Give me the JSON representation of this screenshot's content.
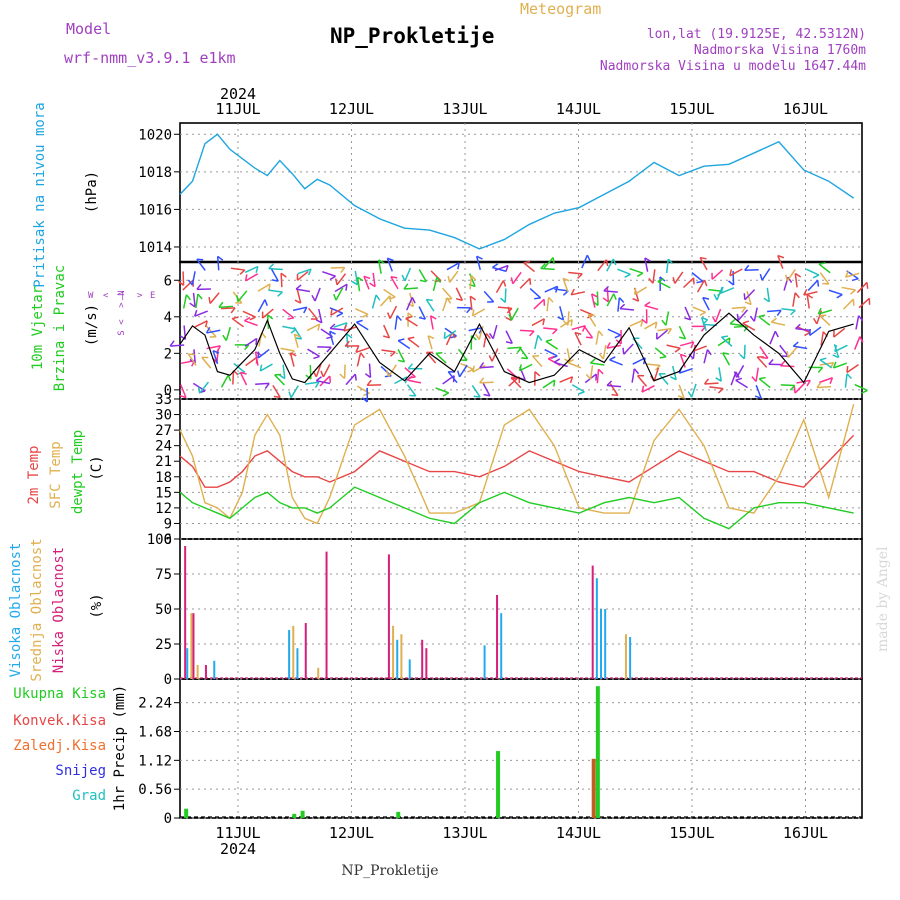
{
  "header": {
    "model_label": "Model",
    "model_name": "wrf-nmm_v3.9.1 e1km",
    "product": "Meteogram",
    "station": "NP_Prokletije",
    "lonlat": "lon,lat (19.9125E, 42.5312N)",
    "elevation": "Nadmorska Visina 1760m",
    "model_elevation": "Nadmorska Visina u modelu 1647.44m",
    "footer_station": "NP_Prokletije",
    "credit": "made by Angel"
  },
  "time_axis": {
    "year": "2024",
    "days": [
      "11JUL",
      "12JUL",
      "13JUL",
      "14JUL",
      "15JUL",
      "16JUL"
    ]
  },
  "colors": {
    "pressure": "#1fa5e0",
    "temp2m": "#e84545",
    "sfc": "#e0b050",
    "dewpt": "#22cc22",
    "high_cloud": "#22aaee",
    "mid_cloud": "#e0b050",
    "low_cloud": "#d4207a",
    "title_purple": "#a040c0",
    "product_orange": "#e0b050",
    "wind_black": "#000000"
  },
  "panels": {
    "pressure": {
      "label": "Pritisak na nivou mora",
      "unit": "(hPa)",
      "ticks": [
        "1014",
        "1016",
        "1018",
        "1020"
      ]
    },
    "wind": {
      "label1": "10m Vjetar",
      "label2": "Brzina i Pravac",
      "unit": "(m/s)",
      "ticks": [
        "0",
        "2",
        "4",
        "6"
      ],
      "compass_n": "N",
      "compass_s": "S",
      "compass_w": "W",
      "compass_e": "E"
    },
    "temp": {
      "label1": "2m Temp",
      "label2": "SFC Temp",
      "label3": "dewpt Temp",
      "unit": "(C)",
      "ticks": [
        "6",
        "9",
        "12",
        "15",
        "18",
        "21",
        "24",
        "27",
        "30",
        "33"
      ]
    },
    "cloud": {
      "label1": "Visoka Oblacnost",
      "label2": "Srednja Oblacnost",
      "label3": "Niska Oblacnost",
      "unit": "(%)",
      "ticks": [
        "0",
        "25",
        "50",
        "75",
        "100"
      ]
    },
    "precip": {
      "legend": [
        "Ukupna Kisa",
        "Konvek.Kisa",
        "Zaledj.Kisa",
        "Snijeg",
        "Grad"
      ],
      "legend_colors": [
        "#22cc22",
        "#e84545",
        "#f07030",
        "#3030e0",
        "#20c0c0"
      ],
      "unit": "1hr Precip (mm)",
      "ticks": [
        "0",
        "0.56",
        "1.12",
        "1.68",
        "2.24"
      ]
    }
  },
  "chart_data": [
    {
      "type": "line",
      "name_key": "pressure",
      "x_hours": [
        0,
        3,
        6,
        9,
        12,
        15,
        18,
        21,
        24,
        27,
        30,
        33,
        36,
        42,
        48,
        54,
        60,
        66,
        72,
        78,
        84,
        90,
        96,
        102,
        108,
        114,
        120,
        126,
        132,
        138,
        144,
        150,
        156,
        162
      ],
      "y": [
        1016.8,
        1017.5,
        1019.5,
        1020.0,
        1019.2,
        1018.7,
        1018.2,
        1017.8,
        1018.6,
        1017.9,
        1017.1,
        1017.6,
        1017.3,
        1016.2,
        1015.5,
        1015.0,
        1014.9,
        1014.5,
        1013.9,
        1014.4,
        1015.2,
        1015.8,
        1016.1,
        1016.8,
        1017.5,
        1018.5,
        1017.8,
        1018.3,
        1018.4,
        1019.0,
        1019.6,
        1018.1,
        1017.5,
        1016.6
      ],
      "ylim": [
        1013.2,
        1020.6
      ],
      "ylabel": "Pritisak na nivou mora (hPa)"
    },
    {
      "type": "line",
      "name_key": "wind",
      "x_hours": [
        0,
        3,
        6,
        9,
        12,
        15,
        18,
        21,
        24,
        27,
        30,
        33,
        36,
        42,
        48,
        54,
        60,
        66,
        72,
        78,
        84,
        90,
        96,
        102,
        108,
        114,
        120,
        126,
        132,
        138,
        144,
        150,
        156,
        162
      ],
      "y": [
        2.5,
        3.5,
        3.0,
        1.0,
        0.8,
        1.5,
        2.2,
        3.8,
        2.0,
        0.6,
        0.4,
        1.2,
        2.0,
        3.6,
        1.5,
        0.5,
        2.0,
        1.0,
        3.6,
        1.0,
        0.4,
        0.8,
        2.2,
        1.5,
        3.4,
        0.5,
        1.0,
        3.0,
        4.2,
        3.0,
        2.0,
        0.4,
        3.2,
        3.6
      ],
      "ylim": [
        -0.5,
        7.0
      ],
      "ylabel": "10m Vjetar Brzina i Pravac (m/s)"
    },
    {
      "type": "line",
      "name_key": "temperature",
      "x_hours": [
        0,
        3,
        6,
        9,
        12,
        15,
        18,
        21,
        24,
        27,
        30,
        33,
        36,
        42,
        48,
        54,
        60,
        66,
        72,
        78,
        84,
        90,
        96,
        102,
        108,
        114,
        120,
        126,
        132,
        138,
        144,
        150,
        156,
        162
      ],
      "series": [
        {
          "name": "2m Temp",
          "values": [
            22,
            20,
            16,
            16,
            17,
            19,
            22,
            23,
            21,
            19,
            18,
            18,
            17,
            19,
            23,
            21,
            19,
            19,
            18,
            20,
            23,
            21,
            19,
            18,
            17,
            20,
            23,
            21,
            19,
            19,
            17,
            16,
            21,
            26
          ]
        },
        {
          "name": "SFC Temp",
          "values": [
            27,
            22,
            13,
            12,
            10,
            15,
            26,
            30,
            26,
            14,
            10,
            9,
            14,
            28,
            31,
            22,
            11,
            11,
            13,
            28,
            31,
            24,
            12,
            11,
            11,
            25,
            31,
            24,
            12,
            11,
            18,
            29,
            14,
            32
          ]
        },
        {
          "name": "dewpt Temp",
          "values": [
            15,
            13,
            12,
            11,
            10,
            12,
            14,
            15,
            13,
            12,
            12,
            11,
            12,
            16,
            14,
            12,
            10,
            9,
            13,
            15,
            13,
            12,
            11,
            13,
            14,
            13,
            14,
            10,
            8,
            12,
            13,
            13,
            12,
            11
          ]
        }
      ],
      "ylim": [
        6,
        33
      ],
      "ylabel": "Temp (C)"
    },
    {
      "type": "bar",
      "name_key": "clouds",
      "bars": [
        {
          "x": 1,
          "series": "Niska Oblacnost",
          "value": 95
        },
        {
          "x": 1.5,
          "series": "Visoka Oblacnost",
          "value": 22
        },
        {
          "x": 2.5,
          "series": "Srednja Oblacnost",
          "value": 47
        },
        {
          "x": 3,
          "series": "Niska Oblacnost",
          "value": 47
        },
        {
          "x": 4,
          "series": "Srednja Oblacnost",
          "value": 10
        },
        {
          "x": 6,
          "series": "Niska Oblacnost",
          "value": 10
        },
        {
          "x": 8,
          "series": "Visoka Oblacnost",
          "value": 13
        },
        {
          "x": 26,
          "series": "Visoka Oblacnost",
          "value": 35
        },
        {
          "x": 27,
          "series": "Srednja Oblacnost",
          "value": 38
        },
        {
          "x": 28,
          "series": "Visoka Oblacnost",
          "value": 22
        },
        {
          "x": 30,
          "series": "Niska Oblacnost",
          "value": 40
        },
        {
          "x": 33,
          "series": "Srednja Oblacnost",
          "value": 8
        },
        {
          "x": 35,
          "series": "Niska Oblacnost",
          "value": 91
        },
        {
          "x": 50,
          "series": "Niska Oblacnost",
          "value": 89
        },
        {
          "x": 51,
          "series": "Srednja Oblacnost",
          "value": 38
        },
        {
          "x": 52,
          "series": "Visoka Oblacnost",
          "value": 28
        },
        {
          "x": 53,
          "series": "Srednja Oblacnost",
          "value": 32
        },
        {
          "x": 55,
          "series": "Visoka Oblacnost",
          "value": 14
        },
        {
          "x": 58,
          "series": "Niska Oblacnost",
          "value": 28
        },
        {
          "x": 59,
          "series": "Niska Oblacnost",
          "value": 22
        },
        {
          "x": 73,
          "series": "Visoka Oblacnost",
          "value": 24
        },
        {
          "x": 76,
          "series": "Niska Oblacnost",
          "value": 60
        },
        {
          "x": 77,
          "series": "Visoka Oblacnost",
          "value": 47
        },
        {
          "x": 99,
          "series": "Niska Oblacnost",
          "value": 81
        },
        {
          "x": 100,
          "series": "Visoka Oblacnost",
          "value": 72
        },
        {
          "x": 101,
          "series": "Visoka Oblacnost",
          "value": 50
        },
        {
          "x": 102,
          "series": "Visoka Oblacnost",
          "value": 50
        },
        {
          "x": 107,
          "series": "Srednja Oblacnost",
          "value": 32
        },
        {
          "x": 108,
          "series": "Visoka Oblacnost",
          "value": 30
        }
      ],
      "ylim": [
        0,
        100
      ],
      "ylabel": "Oblacnost (%)"
    },
    {
      "type": "bar",
      "name_key": "precip",
      "bars": [
        {
          "x": 1,
          "series": "Ukupna Kisa",
          "value": 0.18
        },
        {
          "x": 27,
          "series": "Ukupna Kisa",
          "value": 0.08
        },
        {
          "x": 29,
          "series": "Ukupna Kisa",
          "value": 0.14
        },
        {
          "x": 52,
          "series": "Ukupna Kisa",
          "value": 0.12
        },
        {
          "x": 76,
          "series": "Ukupna Kisa",
          "value": 1.3
        },
        {
          "x": 99,
          "series": "Konvek.Kisa",
          "value": 1.15
        },
        {
          "x": 100,
          "series": "Ukupna Kisa",
          "value": 2.56
        }
      ],
      "ylim": [
        0,
        2.7
      ],
      "ylabel": "1hr Precip (mm)"
    }
  ]
}
